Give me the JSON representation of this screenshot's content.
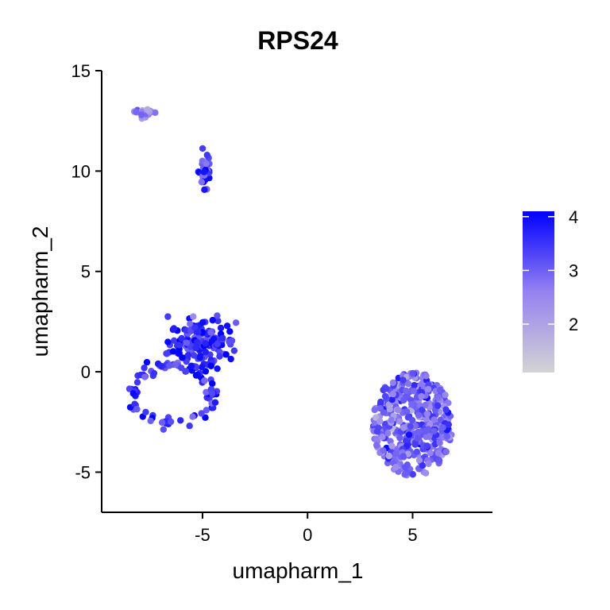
{
  "chart_data": {
    "type": "scatter",
    "title": "RPS24",
    "xlabel": "umapharm_1",
    "ylabel": "umapharm_2",
    "xlim": [
      -9.8,
      8.8
    ],
    "ylim": [
      -7.0,
      15.0
    ],
    "xticks": [
      -5,
      0,
      5
    ],
    "yticks": [
      -5,
      0,
      5,
      10,
      15
    ],
    "grid": false,
    "color_scale": {
      "low_color": "#d3d3d3",
      "high_color": "#0000ff",
      "min": 1.1,
      "max": 4.1,
      "legend_ticks": [
        2,
        3,
        4
      ],
      "legend_position": "right"
    },
    "clusters": [
      {
        "center": [
          -7.8,
          12.9
        ],
        "spread": [
          0.45,
          0.18
        ],
        "shape": "blob",
        "n": 22,
        "expression": 2.6
      },
      {
        "center": [
          -4.9,
          10.0
        ],
        "spread": [
          0.25,
          0.75
        ],
        "shape": "blob",
        "n": 30,
        "expression": 3.3
      },
      {
        "center": [
          -5.0,
          1.4
        ],
        "spread": [
          1.3,
          1.0
        ],
        "shape": "blob",
        "n": 160,
        "expression": 3.6
      },
      {
        "center": [
          -6.4,
          -1.1
        ],
        "spread": [
          1.9,
          1.4
        ],
        "shape": "ring",
        "n": 90,
        "expression": 3.5
      },
      {
        "center": [
          5.0,
          -2.6
        ],
        "spread": [
          1.9,
          2.6
        ],
        "shape": "disc",
        "n": 420,
        "expression": 2.9
      }
    ]
  }
}
